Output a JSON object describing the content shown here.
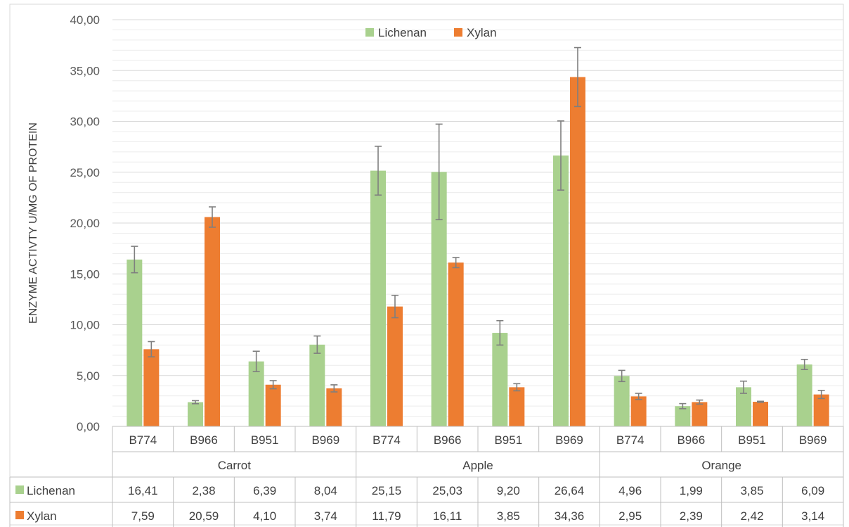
{
  "chart_data": {
    "type": "bar",
    "title": "",
    "ylabel": "ENZYME ACTIVTY U/MG OF PROTEIN",
    "ylim": [
      0,
      40
    ],
    "y_ticks": [
      "0,00",
      "5,00",
      "10,00",
      "15,00",
      "20,00",
      "25,00",
      "30,00",
      "35,00",
      "40,00"
    ],
    "grid": true,
    "legend_position": "top",
    "groups": [
      {
        "label": "Carrot",
        "strains": [
          "B774",
          "B966",
          "B951",
          "B969"
        ]
      },
      {
        "label": "Apple",
        "strains": [
          "B774",
          "B966",
          "B951",
          "B969"
        ]
      },
      {
        "label": "Orange",
        "strains": [
          "B774",
          "B966",
          "B951",
          "B969"
        ]
      }
    ],
    "series": [
      {
        "name": "Lichenan",
        "color": "#a9d18e",
        "values": [
          16.41,
          2.38,
          6.39,
          8.04,
          25.15,
          25.03,
          9.2,
          26.64,
          4.96,
          1.99,
          3.85,
          6.09
        ],
        "labels": [
          "16,41",
          "2,38",
          "6,39",
          "8,04",
          "25,15",
          "25,03",
          "9,20",
          "26,64",
          "4,96",
          "1,99",
          "3,85",
          "6,09"
        ],
        "errors": [
          1.3,
          0.15,
          1.0,
          0.85,
          2.4,
          4.7,
          1.2,
          3.4,
          0.55,
          0.25,
          0.6,
          0.5
        ]
      },
      {
        "name": "Xylan",
        "color": "#ed7d31",
        "values": [
          7.59,
          20.59,
          4.1,
          3.74,
          11.79,
          16.11,
          3.85,
          34.36,
          2.95,
          2.39,
          2.42,
          3.14
        ],
        "labels": [
          "7,59",
          "20,59",
          "4,10",
          "3,74",
          "11,79",
          "16,11",
          "3,85",
          "34,36",
          "2,95",
          "2,39",
          "2,42",
          "3,14"
        ],
        "errors": [
          0.75,
          1.0,
          0.4,
          0.35,
          1.1,
          0.5,
          0.35,
          2.9,
          0.3,
          0.2,
          0.05,
          0.4
        ]
      }
    ]
  }
}
